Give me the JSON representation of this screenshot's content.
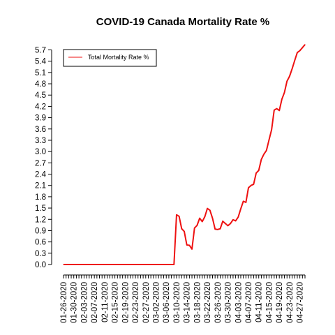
{
  "chart_data": {
    "type": "line",
    "title": "COVID-19 Canada Mortality Rate %",
    "xlabel": "",
    "ylabel": "",
    "ylim": [
      0.0,
      5.7
    ],
    "yticks": [
      0.0,
      0.3,
      0.6,
      0.9,
      1.2,
      1.5,
      1.8,
      2.1,
      2.4,
      2.7,
      3.0,
      3.3,
      3.6,
      3.9,
      4.2,
      4.5,
      4.8,
      5.1,
      5.4,
      5.7
    ],
    "ytick_labels": [
      "0.0",
      "0.3",
      "0.6",
      "0.9",
      "1.2",
      "1.5",
      "1.8",
      "2.1",
      "2.4",
      "2.7",
      "3.0",
      "3.3",
      "3.6",
      "3.9",
      "4.2",
      "4.5",
      "4.8",
      "5.1",
      "5.4",
      "5.7"
    ],
    "x": [
      "01-26-2020",
      "01-27-2020",
      "01-28-2020",
      "01-29-2020",
      "01-30-2020",
      "01-31-2020",
      "02-01-2020",
      "02-02-2020",
      "02-03-2020",
      "02-04-2020",
      "02-05-2020",
      "02-06-2020",
      "02-07-2020",
      "02-08-2020",
      "02-09-2020",
      "02-10-2020",
      "02-11-2020",
      "02-12-2020",
      "02-13-2020",
      "02-14-2020",
      "02-15-2020",
      "02-16-2020",
      "02-17-2020",
      "02-18-2020",
      "02-19-2020",
      "02-20-2020",
      "02-21-2020",
      "02-22-2020",
      "02-23-2020",
      "02-24-2020",
      "02-25-2020",
      "02-26-2020",
      "02-27-2020",
      "02-28-2020",
      "02-29-2020",
      "03-01-2020",
      "03-02-2020",
      "03-03-2020",
      "03-04-2020",
      "03-05-2020",
      "03-06-2020",
      "03-07-2020",
      "03-08-2020",
      "03-09-2020",
      "03-10-2020",
      "03-11-2020",
      "03-12-2020",
      "03-13-2020",
      "03-14-2020",
      "03-15-2020",
      "03-16-2020",
      "03-17-2020",
      "03-18-2020",
      "03-19-2020",
      "03-20-2020",
      "03-21-2020",
      "03-22-2020",
      "03-23-2020",
      "03-24-2020",
      "03-25-2020",
      "03-26-2020",
      "03-27-2020",
      "03-28-2020",
      "03-29-2020",
      "03-30-2020",
      "03-31-2020",
      "04-01-2020",
      "04-02-2020",
      "04-03-2020",
      "04-04-2020",
      "04-05-2020",
      "04-06-2020",
      "04-07-2020",
      "04-08-2020",
      "04-09-2020",
      "04-10-2020",
      "04-11-2020",
      "04-12-2020",
      "04-13-2020",
      "04-14-2020",
      "04-15-2020",
      "04-16-2020",
      "04-17-2020",
      "04-18-2020",
      "04-19-2020",
      "04-20-2020",
      "04-21-2020",
      "04-22-2020",
      "04-23-2020",
      "04-24-2020",
      "04-25-2020",
      "04-26-2020",
      "04-27-2020",
      "04-28-2020",
      "04-29-2020"
    ],
    "xtick_labels": [
      "01-26-2020",
      "01-30-2020",
      "02-03-2020",
      "02-07-2020",
      "02-11-2020",
      "02-15-2020",
      "02-19-2020",
      "02-23-2020",
      "02-27-2020",
      "03-02-2020",
      "03-06-2020",
      "03-10-2020",
      "03-14-2020",
      "03-18-2020",
      "03-22-2020",
      "03-26-2020",
      "03-30-2020",
      "04-03-2020",
      "04-07-2020",
      "04-11-2020",
      "04-15-2020",
      "04-19-2020",
      "04-23-2020",
      "04-27-2020"
    ],
    "series": [
      {
        "name": "Total Mortality Rate %",
        "color": "#ee1111",
        "values": [
          0,
          0,
          0,
          0,
          0,
          0,
          0,
          0,
          0,
          0,
          0,
          0,
          0,
          0,
          0,
          0,
          0,
          0,
          0,
          0,
          0,
          0,
          0,
          0,
          0,
          0,
          0,
          0,
          0,
          0,
          0,
          0,
          0,
          0,
          0,
          0,
          0,
          0,
          0,
          0,
          0,
          0,
          0,
          0,
          1.32,
          1.28,
          0.95,
          0.88,
          0.52,
          0.51,
          0.41,
          0.97,
          1.04,
          1.23,
          1.14,
          1.27,
          1.49,
          1.44,
          1.23,
          0.94,
          0.93,
          0.95,
          1.15,
          1.09,
          1.03,
          1.09,
          1.19,
          1.16,
          1.26,
          1.48,
          1.68,
          1.65,
          2.04,
          2.1,
          2.13,
          2.43,
          2.5,
          2.79,
          2.93,
          3.03,
          3.31,
          3.58,
          4.1,
          4.14,
          4.09,
          4.39,
          4.57,
          4.87,
          5.0,
          5.2,
          5.42,
          5.63,
          5.68,
          5.76,
          5.84
        ]
      }
    ],
    "legend": {
      "placement": "top-left",
      "entries": [
        "Total Mortality Rate %"
      ]
    },
    "grid": false
  }
}
